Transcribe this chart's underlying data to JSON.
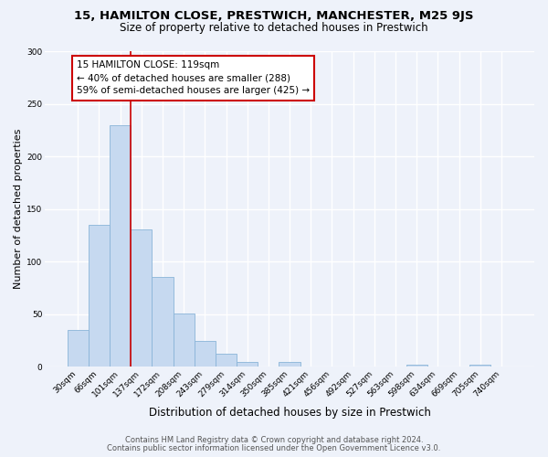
{
  "title": "15, HAMILTON CLOSE, PRESTWICH, MANCHESTER, M25 9JS",
  "subtitle": "Size of property relative to detached houses in Prestwich",
  "bar_labels": [
    "30sqm",
    "66sqm",
    "101sqm",
    "137sqm",
    "172sqm",
    "208sqm",
    "243sqm",
    "279sqm",
    "314sqm",
    "350sqm",
    "385sqm",
    "421sqm",
    "456sqm",
    "492sqm",
    "527sqm",
    "563sqm",
    "598sqm",
    "634sqm",
    "669sqm",
    "705sqm",
    "740sqm"
  ],
  "bar_heights": [
    35,
    135,
    230,
    131,
    85,
    51,
    25,
    12,
    5,
    0,
    5,
    0,
    0,
    0,
    0,
    0,
    2,
    0,
    0,
    2,
    0
  ],
  "bar_color": "#c6d9f0",
  "bar_edge_color": "#8ab4d8",
  "ylabel": "Number of detached properties",
  "xlabel": "Distribution of detached houses by size in Prestwich",
  "ylim": [
    0,
    300
  ],
  "yticks": [
    0,
    50,
    100,
    150,
    200,
    250,
    300
  ],
  "marker_bin_index": 2,
  "marker_color": "#cc0000",
  "annotation_title": "15 HAMILTON CLOSE: 119sqm",
  "annotation_line1": "← 40% of detached houses are smaller (288)",
  "annotation_line2": "59% of semi-detached houses are larger (425) →",
  "annotation_box_color": "#ffffff",
  "annotation_box_edge": "#cc0000",
  "footnote1": "Contains HM Land Registry data © Crown copyright and database right 2024.",
  "footnote2": "Contains public sector information licensed under the Open Government Licence v3.0.",
  "bg_color": "#eef2fa",
  "plot_bg_color": "#eef2fa",
  "grid_color": "#ffffff",
  "title_fontsize": 9.5,
  "subtitle_fontsize": 8.5,
  "xlabel_fontsize": 8.5,
  "ylabel_fontsize": 8,
  "tick_fontsize": 6.5,
  "annotation_fontsize": 7.5,
  "footnote_fontsize": 6
}
